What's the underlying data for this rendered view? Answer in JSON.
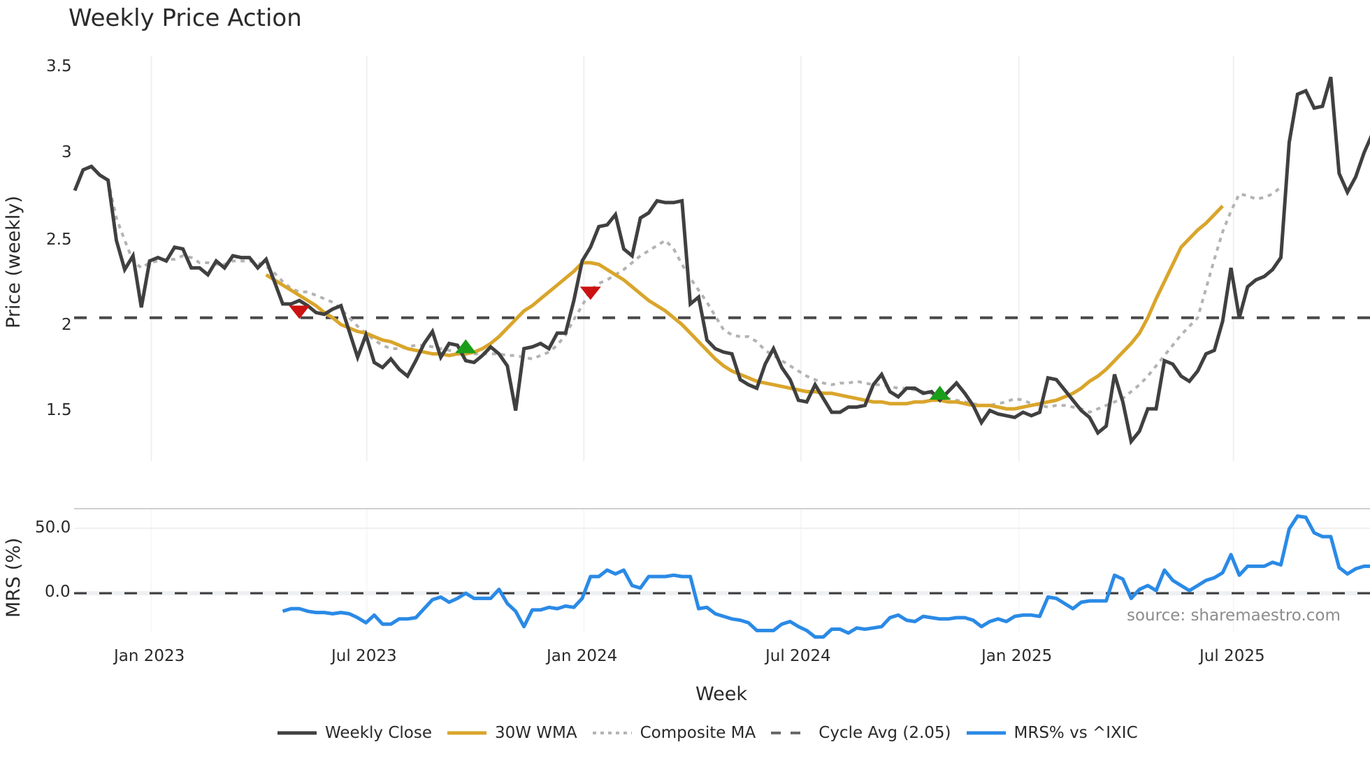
{
  "title": "Weekly Price Action",
  "source_note": "source: sharemaestro.com",
  "price_panel": {
    "ylabel": "Price (weekly)",
    "yticks": [
      "3.5",
      "3",
      "2.5",
      "2",
      "1.5"
    ]
  },
  "mrs_panel": {
    "ylabel": "MRS (%)",
    "yticks": [
      "50.0",
      "0.0"
    ]
  },
  "x_axis": {
    "label": "Week",
    "ticks": [
      "Jan 2023",
      "Jul 2023",
      "Jan 2024",
      "Jul 2024",
      "Jan 2025",
      "Jul 2025"
    ]
  },
  "legend": [
    {
      "label": "Weekly Close",
      "color": "#404040",
      "style": "solid"
    },
    {
      "label": "30W WMA",
      "color": "#d9a52b",
      "style": "solid"
    },
    {
      "label": "Composite MA",
      "color": "#b3b3b3",
      "style": "dotted"
    },
    {
      "label": "Cycle Avg (2.05)",
      "color": "#505050",
      "style": "dashed"
    },
    {
      "label": "MRS% vs ^IXIC",
      "color": "#2a8ae6",
      "style": "solid"
    }
  ],
  "colors": {
    "close": "#404040",
    "wma": "#d9a52b",
    "composite": "#b3b3b3",
    "cycle": "#4a4a4a",
    "mrs": "#2a8ae6",
    "buy_marker": "#1a9e1a",
    "sell_marker": "#cc1111",
    "grid": "#eef0f3"
  },
  "chart_data": [
    {
      "type": "line",
      "title": "Weekly Price Action",
      "xlabel": "Week",
      "ylabel": "Price (weekly)",
      "ylim": [
        1.2,
        3.57
      ],
      "x_tick_labels": [
        "Jan 2023",
        "Jul 2023",
        "Jan 2024",
        "Jul 2024",
        "Jan 2025",
        "Jul 2025"
      ],
      "x_tick_week_index": [
        9.2,
        35.1,
        61.2,
        87.3,
        113.5,
        139.3
      ],
      "grid": "vertical only",
      "legend_position": "bottom",
      "series": [
        {
          "name": "Weekly Close",
          "start_index": 0,
          "values": [
            2.79,
            2.91,
            2.93,
            2.88,
            2.85,
            2.5,
            2.33,
            2.41,
            2.11,
            2.38,
            2.4,
            2.38,
            2.46,
            2.45,
            2.34,
            2.34,
            2.3,
            2.38,
            2.34,
            2.41,
            2.4,
            2.4,
            2.34,
            2.39,
            2.26,
            2.13,
            2.13,
            2.15,
            2.12,
            2.08,
            2.07,
            2.1,
            2.12,
            1.97,
            1.82,
            1.95,
            1.79,
            1.76,
            1.81,
            1.75,
            1.71,
            1.8,
            1.9,
            1.97,
            1.82,
            1.9,
            1.89,
            1.8,
            1.79,
            1.83,
            1.88,
            1.84,
            1.77,
            1.51,
            1.87,
            1.88,
            1.9,
            1.87,
            1.96,
            1.96,
            2.15,
            2.38,
            2.46,
            2.58,
            2.59,
            2.65,
            2.45,
            2.41,
            2.63,
            2.66,
            2.73,
            2.72,
            2.72,
            2.73,
            2.13,
            2.17,
            1.92,
            1.87,
            1.85,
            1.84,
            1.69,
            1.66,
            1.64,
            1.78,
            1.87,
            1.76,
            1.69,
            1.57,
            1.56,
            1.66,
            1.58,
            1.5,
            1.5,
            1.53,
            1.53,
            1.54,
            1.66,
            1.72,
            1.62,
            1.59,
            1.64,
            1.64,
            1.61,
            1.62,
            1.57,
            1.62,
            1.67,
            1.61,
            1.54,
            1.44,
            1.51,
            1.49,
            1.48,
            1.47,
            1.5,
            1.48,
            1.5,
            1.7,
            1.69,
            1.63,
            1.57,
            1.51,
            1.47,
            1.38,
            1.42,
            1.72,
            1.56,
            1.33,
            1.39,
            1.52,
            1.52,
            1.8,
            1.78,
            1.71,
            1.68,
            1.74,
            1.84,
            1.86,
            2.03,
            2.34,
            2.05,
            2.23,
            2.27,
            2.29,
            2.33,
            2.4,
            3.07,
            3.35,
            3.37,
            3.27,
            3.28,
            3.45,
            2.89,
            2.78,
            2.87,
            3.01,
            3.12
          ]
        },
        {
          "name": "30W WMA",
          "start_index": 23,
          "values": [
            2.3,
            2.27,
            2.24,
            2.21,
            2.18,
            2.15,
            2.12,
            2.08,
            2.05,
            2.01,
            1.99,
            1.97,
            1.96,
            1.94,
            1.92,
            1.91,
            1.89,
            1.87,
            1.86,
            1.85,
            1.84,
            1.84,
            1.83,
            1.84,
            1.84,
            1.85,
            1.87,
            1.9,
            1.94,
            1.99,
            2.04,
            2.09,
            2.12,
            2.16,
            2.2,
            2.24,
            2.28,
            2.32,
            2.37,
            2.37,
            2.36,
            2.33,
            2.3,
            2.27,
            2.23,
            2.19,
            2.15,
            2.12,
            2.09,
            2.05,
            2.01,
            1.96,
            1.91,
            1.86,
            1.81,
            1.77,
            1.74,
            1.72,
            1.7,
            1.68,
            1.67,
            1.66,
            1.65,
            1.64,
            1.63,
            1.62,
            1.62,
            1.61,
            1.61,
            1.6,
            1.59,
            1.58,
            1.57,
            1.56,
            1.56,
            1.55,
            1.55,
            1.55,
            1.56,
            1.56,
            1.57,
            1.57,
            1.56,
            1.56,
            1.55,
            1.54,
            1.54,
            1.54,
            1.53,
            1.52,
            1.52,
            1.53,
            1.54,
            1.55,
            1.56,
            1.57,
            1.59,
            1.61,
            1.64,
            1.68,
            1.71,
            1.75,
            1.8,
            1.85,
            1.9,
            1.96,
            2.05,
            2.16,
            2.26,
            2.36,
            2.46,
            2.51,
            2.56,
            2.6,
            2.65,
            2.7
          ]
        },
        {
          "name": "Composite MA",
          "start_index": 4,
          "values": [
            2.85,
            2.63,
            2.5,
            2.38,
            2.34,
            2.37,
            2.38,
            2.39,
            2.39,
            2.41,
            2.4,
            2.37,
            2.37,
            2.36,
            2.36,
            2.38,
            2.38,
            2.38,
            2.37,
            2.35,
            2.31,
            2.26,
            2.22,
            2.2,
            2.2,
            2.18,
            2.16,
            2.14,
            2.1,
            2.05,
            2.0,
            1.96,
            1.92,
            1.89,
            1.87,
            1.87,
            1.88,
            1.89,
            1.89,
            1.88,
            1.87,
            1.86,
            1.85,
            1.84,
            1.84,
            1.84,
            1.84,
            1.84,
            1.83,
            1.83,
            1.82,
            1.81,
            1.83,
            1.85,
            1.89,
            1.95,
            2.04,
            2.12,
            2.21,
            2.25,
            2.27,
            2.3,
            2.33,
            2.37,
            2.41,
            2.44,
            2.47,
            2.5,
            2.45,
            2.36,
            2.28,
            2.21,
            2.14,
            2.06,
            1.98,
            1.95,
            1.94,
            1.94,
            1.91,
            1.86,
            1.83,
            1.8,
            1.77,
            1.74,
            1.71,
            1.69,
            1.67,
            1.66,
            1.67,
            1.67,
            1.68,
            1.67,
            1.66,
            1.66,
            1.65,
            1.64,
            1.64,
            1.63,
            1.62,
            1.61,
            1.59,
            1.58,
            1.57,
            1.56,
            1.55,
            1.54,
            1.54,
            1.55,
            1.56,
            1.58,
            1.57,
            1.55,
            1.54,
            1.53,
            1.54,
            1.54,
            1.53,
            1.52,
            1.5,
            1.52,
            1.54,
            1.56,
            1.58,
            1.62,
            1.66,
            1.71,
            1.77,
            1.83,
            1.89,
            1.95,
            2.0,
            2.05,
            2.22,
            2.39,
            2.55,
            2.67,
            2.77,
            2.76,
            2.74,
            2.75,
            2.77,
            2.81
          ]
        },
        {
          "name": "Cycle Avg (2.05)",
          "constant": 2.05
        }
      ],
      "markers": [
        {
          "type": "sell",
          "shape": "down-triangle",
          "week_index": 27,
          "price": 2.08
        },
        {
          "type": "buy",
          "shape": "up-triangle",
          "week_index": 47,
          "price": 1.88
        },
        {
          "type": "sell",
          "shape": "down-triangle",
          "week_index": 62,
          "price": 2.19
        },
        {
          "type": "buy",
          "shape": "up-triangle",
          "week_index": 104,
          "price": 1.61
        }
      ]
    },
    {
      "type": "line",
      "ylabel": "MRS (%)",
      "ylim": [
        -38,
        66
      ],
      "yticks": [
        0,
        50
      ],
      "reference_line": {
        "value": 0,
        "style": "dashed"
      },
      "series": [
        {
          "name": "MRS% vs ^IXIC",
          "start_index": 25,
          "values": [
            -14,
            -12,
            -12,
            -14,
            -15,
            -15,
            -16,
            -15,
            -16,
            -19,
            -23,
            -17,
            -24,
            -24,
            -20,
            -20,
            -19,
            -12,
            -5,
            -3,
            -7,
            -4,
            0,
            -4,
            -4,
            -4,
            3,
            -8,
            -14,
            -26,
            -13,
            -13,
            -11,
            -12,
            -10,
            -11,
            -4,
            13,
            13,
            18,
            15,
            18,
            6,
            4,
            13,
            13,
            13,
            14,
            13,
            13,
            -12,
            -11,
            -16,
            -18,
            -20,
            -21,
            -23,
            -29,
            -29,
            -29,
            -24,
            -22,
            -26,
            -29,
            -34,
            -34,
            -28,
            -28,
            -31,
            -27,
            -28,
            -27,
            -26,
            -19,
            -17,
            -21,
            -22,
            -18,
            -19,
            -20,
            -20,
            -19,
            -19,
            -21,
            -26,
            -22,
            -20,
            -22,
            -18,
            -17,
            -17,
            -18,
            -3,
            -4,
            -8,
            -12,
            -7,
            -6,
            -6,
            -6,
            14,
            11,
            -4,
            3,
            6,
            2,
            18,
            10,
            6,
            2,
            6,
            10,
            12,
            16,
            30,
            14,
            21,
            21,
            21,
            24,
            22,
            50,
            60,
            59,
            47,
            44,
            44,
            20,
            15,
            19,
            21,
            21,
            20
          ]
        }
      ]
    }
  ]
}
